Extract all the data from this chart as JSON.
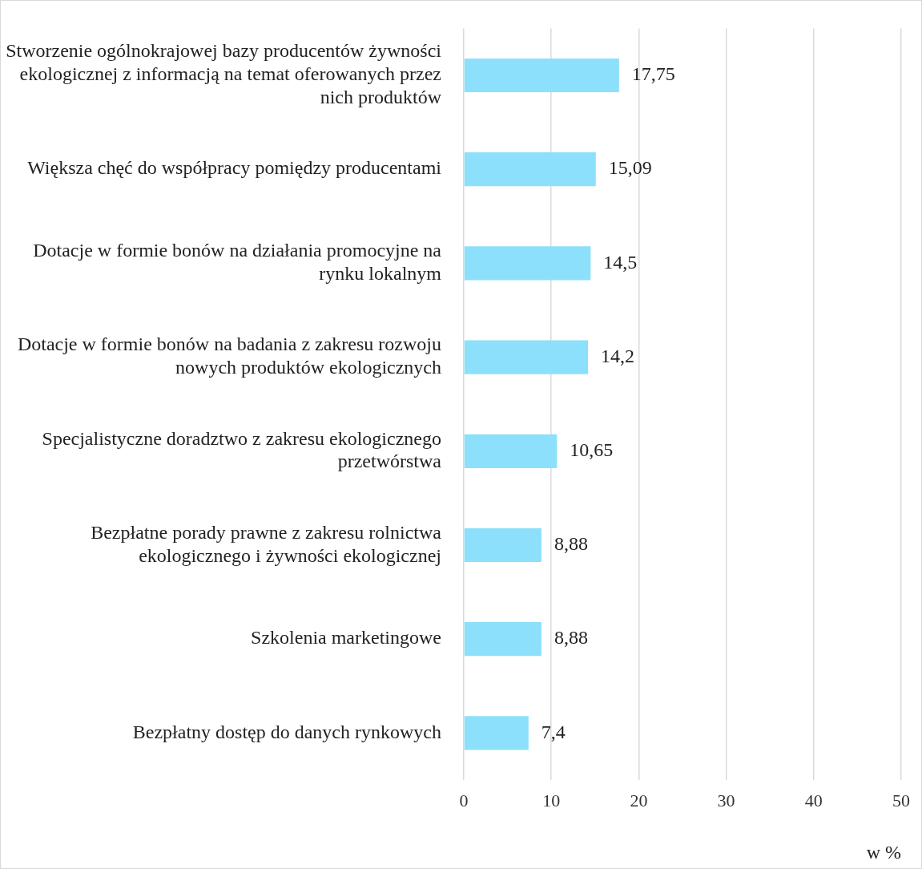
{
  "chart_data": {
    "type": "bar",
    "orientation": "horizontal",
    "xlabel": "w %",
    "categories": [
      "Stworzenie ogólnokrajowej bazy producentów żywności ekologicznej z informacją na temat oferowanych przez nich produktów",
      "Większa chęć do współpracy pomiędzy producentami",
      "Dotacje w formie bonów na działania promocyjne na rynku lokalnym",
      "Dotacje w formie bonów na badania z zakresu rozwoju nowych produktów ekologicznych",
      "Specjalistyczne doradztwo z zakresu ekologicznego przetwórstwa",
      "Bezpłatne porady prawne z zakresu rolnictwa ekologicznego i żywności ekologicznej",
      "Szkolenia marketingowe",
      "Bezpłatny dostęp do danych rynkowych"
    ],
    "values": [
      17.75,
      15.09,
      14.5,
      14.2,
      10.65,
      8.88,
      8.88,
      7.4
    ],
    "value_labels": [
      "17,75",
      "15,09",
      "14,5",
      "14,2",
      "10,65",
      "8,88",
      "8,88",
      "7,4"
    ],
    "color": "#8de0fb",
    "xlim": [
      0,
      50
    ],
    "xticks": [
      0,
      10,
      20,
      30,
      40,
      50
    ],
    "grid": "x",
    "legend": false
  }
}
